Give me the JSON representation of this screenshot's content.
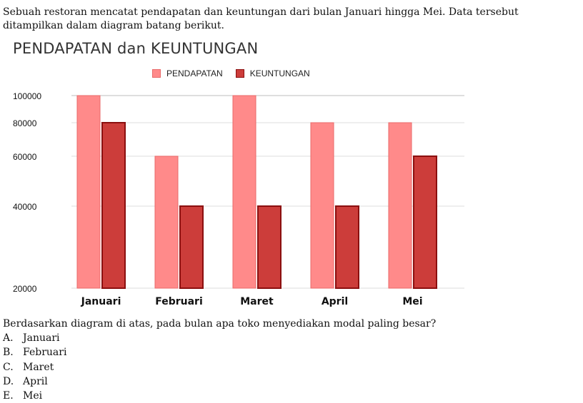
{
  "intro_text": "Sebuah restoran mencatat pendapatan dan keuntungan dari bulan Januari hingga Mei. Data tersebut ditampilkan dalam diagram batang berikut.",
  "question_text": "Berdasarkan diagram di atas, pada bulan apa toko menyediakan modal paling besar?",
  "options": [
    {
      "letter": "A.",
      "text": "Januari"
    },
    {
      "letter": "B.",
      "text": "Februari"
    },
    {
      "letter": "C.",
      "text": "Maret"
    },
    {
      "letter": "D.",
      "text": "April"
    },
    {
      "letter": "E.",
      "text": "Mei"
    }
  ],
  "colors": {
    "pendapatan_fill": "#ff8a8a",
    "pendapatan_stroke": "#e86a6a",
    "keuntungan_fill": "#cc3d3a",
    "keuntungan_stroke": "#8b0f0f",
    "grid": "#dddddd"
  },
  "chart_data": {
    "type": "bar",
    "title": "PENDAPATAN dan KEUNTUNGAN",
    "categories": [
      "Januari",
      "Februari",
      "Maret",
      "April",
      "Mei"
    ],
    "series": [
      {
        "name": "PENDAPATAN",
        "values": [
          100000,
          60000,
          100000,
          80000,
          80000
        ]
      },
      {
        "name": "KEUNTUNGAN",
        "values": [
          80000,
          40000,
          40000,
          40000,
          60000
        ]
      }
    ],
    "y_ticks": [
      "20000",
      "40000",
      "60000",
      "80000",
      "100000"
    ],
    "ylim": [
      20000,
      100000
    ],
    "legend_position": "top-center",
    "grid": true
  }
}
